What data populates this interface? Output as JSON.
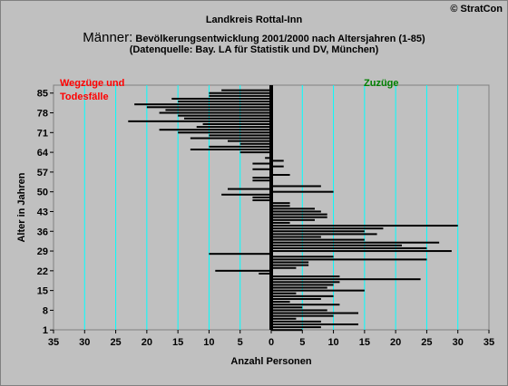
{
  "header": {
    "region": "Landkreis Rottal-Inn",
    "copyright": "© StratCon",
    "title_big": "Männer:",
    "title_rest": " Bevölkerungsentwicklung 2001/2000 nach Altersjahren (1-85)",
    "source": "(Datenquelle: Bay. LA für Statistik und DV, München)"
  },
  "colors": {
    "background": "#c0c0c0",
    "grid": "#00ffff",
    "bars": "#000000",
    "left_label": "#ff0000",
    "right_label": "#008000"
  },
  "chart_data": {
    "type": "bar",
    "orientation": "horizontal",
    "title": "Bevölkerungsentwicklung 2001/2000 nach Altersjahren (1-85)",
    "xlabel": "Anzahl Personen",
    "ylabel": "Alter in Jahren",
    "xlim": [
      -35,
      35
    ],
    "ylim": [
      1,
      87
    ],
    "x_ticks": [
      -35,
      -30,
      -25,
      -20,
      -15,
      -10,
      -5,
      0,
      5,
      10,
      15,
      20,
      25,
      30,
      35
    ],
    "x_tick_labels": [
      "35",
      "30",
      "25",
      "20",
      "15",
      "10",
      "5",
      "0",
      "5",
      "10",
      "15",
      "20",
      "25",
      "30",
      "35"
    ],
    "y_ticks": [
      1,
      8,
      15,
      22,
      29,
      36,
      43,
      50,
      57,
      64,
      71,
      78,
      85
    ],
    "grid": "vertical",
    "annotations": {
      "left": "Wegzüge und Todesfälle",
      "left_line1": "Wegzüge und",
      "left_line2": "Todesfälle",
      "right": "Zuzüge"
    },
    "series": [
      {
        "ages": [
          1,
          2,
          3,
          4,
          5,
          6,
          7,
          8,
          9,
          10,
          11,
          12,
          13,
          14,
          15,
          16,
          17,
          18,
          19,
          20,
          21,
          22,
          23,
          24,
          25,
          26,
          27,
          28,
          29,
          30,
          31,
          32,
          33,
          34,
          35,
          36,
          37,
          38,
          39,
          40,
          41,
          42,
          43,
          44,
          45,
          46,
          47,
          48,
          49,
          50,
          51,
          52,
          53,
          54,
          55,
          56,
          57,
          58,
          59,
          60,
          61,
          62,
          63,
          64,
          65,
          66,
          67,
          68,
          69,
          70,
          71,
          72,
          73,
          74,
          75,
          76,
          77,
          78,
          79,
          80,
          81,
          82,
          83,
          84,
          85,
          86
        ],
        "values": [
          5,
          8,
          14,
          8,
          4,
          10,
          14,
          9,
          5,
          11,
          3,
          8,
          10,
          4,
          15,
          9,
          10,
          11,
          24,
          11,
          -2,
          -9,
          4,
          6,
          6,
          25,
          10,
          -10,
          29,
          25,
          21,
          27,
          15,
          8,
          17,
          15,
          18,
          30,
          3,
          7,
          9,
          9,
          8,
          7,
          3,
          3,
          -3,
          -3,
          -8,
          10,
          -7,
          8,
          0,
          -3,
          -3,
          3,
          0,
          -3,
          2,
          -3,
          2,
          -1,
          0,
          -5,
          -13,
          -10,
          -5,
          -7,
          -13,
          -10,
          -15,
          -18,
          -12,
          -11,
          -23,
          -14,
          -15,
          -18,
          -17,
          -20,
          -22,
          -15,
          -16,
          -10,
          -10,
          -8
        ]
      }
    ]
  }
}
